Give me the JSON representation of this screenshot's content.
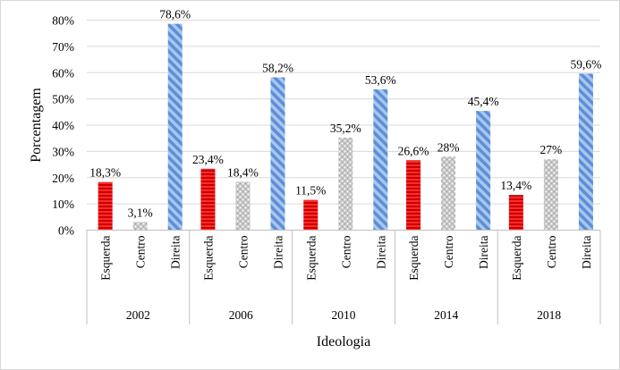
{
  "chart_data": {
    "type": "bar",
    "title": "",
    "xlabel": "Ideologia",
    "ylabel": "Porcentagem",
    "ylim": [
      0,
      80
    ],
    "yticks": [
      "0%",
      "10%",
      "20%",
      "30%",
      "40%",
      "50%",
      "60%",
      "70%",
      "80%"
    ],
    "groups": [
      {
        "year": "2002",
        "bars": [
          {
            "category": "Esquerda",
            "value": 18.3,
            "label": "18,3%"
          },
          {
            "category": "Centro",
            "value": 3.1,
            "label": "3,1%"
          },
          {
            "category": "Direita",
            "value": 78.6,
            "label": "78,6%"
          }
        ]
      },
      {
        "year": "2006",
        "bars": [
          {
            "category": "Esquerda",
            "value": 23.4,
            "label": "23,4%"
          },
          {
            "category": "Centro",
            "value": 18.4,
            "label": "18,4%"
          },
          {
            "category": "Direita",
            "value": 58.2,
            "label": "58,2%"
          }
        ]
      },
      {
        "year": "2010",
        "bars": [
          {
            "category": "Esquerda",
            "value": 11.5,
            "label": "11,5%"
          },
          {
            "category": "Centro",
            "value": 35.2,
            "label": "35,2%"
          },
          {
            "category": "Direita",
            "value": 53.6,
            "label": "53,6%"
          }
        ]
      },
      {
        "year": "2014",
        "bars": [
          {
            "category": "Esquerda",
            "value": 26.6,
            "label": "26,6%"
          },
          {
            "category": "Centro",
            "value": 28,
            "label": "28%"
          },
          {
            "category": "Direita",
            "value": 45.4,
            "label": "45,4%"
          }
        ]
      },
      {
        "year": "2018",
        "bars": [
          {
            "category": "Esquerda",
            "value": 13.4,
            "label": "13,4%"
          },
          {
            "category": "Centro",
            "value": 27,
            "label": "27%"
          },
          {
            "category": "Direita",
            "value": 59.6,
            "label": "59,6%"
          }
        ]
      }
    ],
    "colors": {
      "Esquerda": "#e00000",
      "Centro": "#bfbfbf",
      "Direita": "#7fa7e0"
    }
  }
}
